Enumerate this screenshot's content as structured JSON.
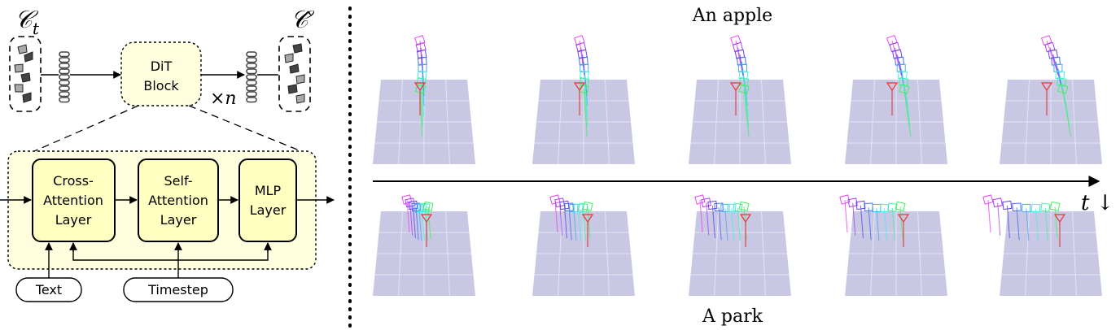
{
  "architecture": {
    "input_symbol": "𝒞",
    "input_subscript": "t",
    "output_symbol": "𝒞̂",
    "dit_block": [
      "DiT",
      "Block"
    ],
    "repeat_label": "×n",
    "layers": [
      {
        "lines": [
          "Cross-",
          "Attention",
          "Layer"
        ]
      },
      {
        "lines": [
          "Self-",
          "Attention",
          "Layer"
        ]
      },
      {
        "lines": [
          "MLP",
          "Layer"
        ]
      }
    ],
    "text_input": "Text",
    "timestep_input": "Timestep"
  },
  "results": {
    "top_caption": "An apple",
    "bottom_caption": "A park",
    "time_axis_label": "t ↓",
    "frames_per_row": 5
  },
  "colors": {
    "block_fill": "#ffffe0",
    "layer_fill": "#ffffc2",
    "ground_plane": "#c8c8e4",
    "token": "#444444",
    "pose_pink": "#ff44cc",
    "pose_blue": "#5555ee",
    "pose_green": "#33cc66",
    "pose_red": "#ee3333"
  }
}
